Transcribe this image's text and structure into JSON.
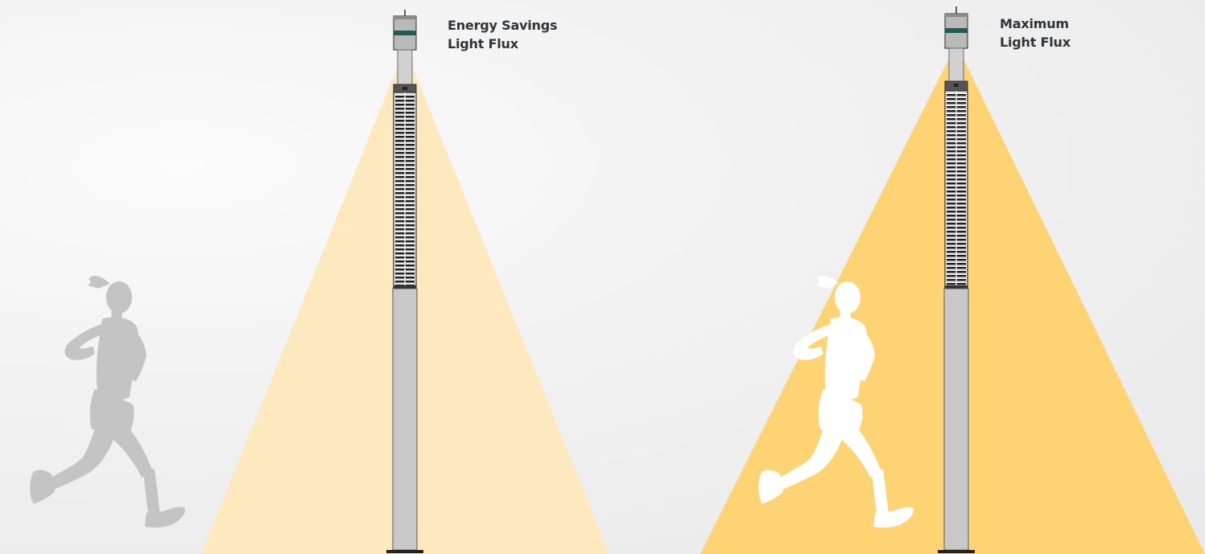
{
  "colors": {
    "background": "#efefef",
    "beam_low": "#fde9bd",
    "beam_high": "#fdd373",
    "pole": "#c8c8c8",
    "pole_outline": "#2d2d2d",
    "accent_band": "#1f5a55",
    "runner_dim": "#c4c4c4",
    "runner_lit": "#ffffff",
    "label_text": "#2f3437"
  },
  "panels": [
    {
      "label_line1": "Energy Savings",
      "label_line2": "Light Flux",
      "mode": "energy-savings",
      "runner": "dim"
    },
    {
      "label_line1": "Maximum",
      "label_line2": "Light Flux",
      "mode": "maximum",
      "runner": "lit"
    }
  ]
}
